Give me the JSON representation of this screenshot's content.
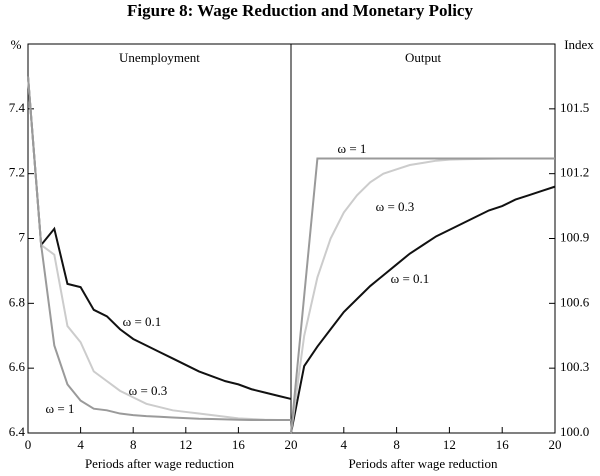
{
  "title": "Figure 8: Wage Reduction and Monetary Policy",
  "chart_data": [
    {
      "type": "line",
      "title": "Unemployment",
      "xlabel": "Periods after wage reduction",
      "ylabel": "%",
      "x": [
        0,
        1,
        2,
        3,
        4,
        5,
        6,
        7,
        8,
        9,
        10,
        11,
        12,
        13,
        14,
        15,
        16,
        17,
        18,
        19,
        20
      ],
      "xlim": [
        0,
        20
      ],
      "xticks": [
        0,
        4,
        8,
        12,
        16,
        20
      ],
      "ylim": [
        6.4,
        7.6
      ],
      "yticks": [
        6.4,
        6.6,
        6.8,
        7.0,
        7.2,
        7.4
      ],
      "y_axis_side": "left",
      "series": [
        {
          "name": "ω = 0.1",
          "color": "#111111",
          "values": [
            7.5,
            6.98,
            7.03,
            6.86,
            6.85,
            6.78,
            6.76,
            6.72,
            6.69,
            6.67,
            6.65,
            6.63,
            6.61,
            6.59,
            6.575,
            6.56,
            6.55,
            6.535,
            6.525,
            6.515,
            6.505
          ]
        },
        {
          "name": "ω = 0.3",
          "color": "#cccccc",
          "values": [
            7.5,
            6.98,
            6.95,
            6.73,
            6.68,
            6.59,
            6.56,
            6.53,
            6.51,
            6.49,
            6.48,
            6.47,
            6.465,
            6.46,
            6.455,
            6.45,
            6.445,
            6.443,
            6.441,
            6.44,
            6.44
          ]
        },
        {
          "name": "ω = 1",
          "color": "#9a9a9a",
          "values": [
            7.5,
            6.98,
            6.67,
            6.55,
            6.5,
            6.475,
            6.47,
            6.46,
            6.455,
            6.452,
            6.45,
            6.448,
            6.446,
            6.444,
            6.443,
            6.442,
            6.441,
            6.44,
            6.44,
            6.44,
            6.44
          ]
        }
      ]
    },
    {
      "type": "line",
      "title": "Output",
      "xlabel": "Periods after wage reduction",
      "ylabel": "Index",
      "x": [
        0,
        1,
        2,
        3,
        4,
        5,
        6,
        7,
        8,
        9,
        10,
        11,
        12,
        13,
        14,
        15,
        16,
        17,
        18,
        19,
        20
      ],
      "xlim": [
        0,
        20
      ],
      "xticks": [
        4,
        8,
        12,
        16,
        20
      ],
      "ylim": [
        100,
        101.8
      ],
      "yticks": [
        {
          "value": 100,
          "label": "100.0"
        },
        100.3,
        100.6,
        100.9,
        101.2,
        101.5
      ],
      "y_axis_side": "right",
      "series": [
        {
          "name": "ω = 0.1",
          "color": "#111111",
          "values": [
            100,
            100.31,
            100.4,
            100.48,
            100.56,
            100.62,
            100.68,
            100.73,
            100.78,
            100.83,
            100.87,
            100.91,
            100.94,
            100.97,
            101.0,
            101.03,
            101.05,
            101.08,
            101.1,
            101.12,
            101.14
          ]
        },
        {
          "name": "ω = 0.3",
          "color": "#cccccc",
          "values": [
            100,
            100.45,
            100.72,
            100.9,
            101.02,
            101.1,
            101.16,
            101.2,
            101.22,
            101.24,
            101.25,
            101.26,
            101.265,
            101.267,
            101.268,
            101.269,
            101.27,
            101.27,
            101.27,
            101.27,
            101.27
          ]
        },
        {
          "name": "ω = 1",
          "color": "#9a9a9a",
          "values": [
            100,
            100.635,
            101.27,
            101.27,
            101.27,
            101.27,
            101.27,
            101.27,
            101.27,
            101.27,
            101.27,
            101.27,
            101.27,
            101.27,
            101.27,
            101.27,
            101.27,
            101.27,
            101.27,
            101.27,
            101.27
          ]
        }
      ]
    }
  ]
}
